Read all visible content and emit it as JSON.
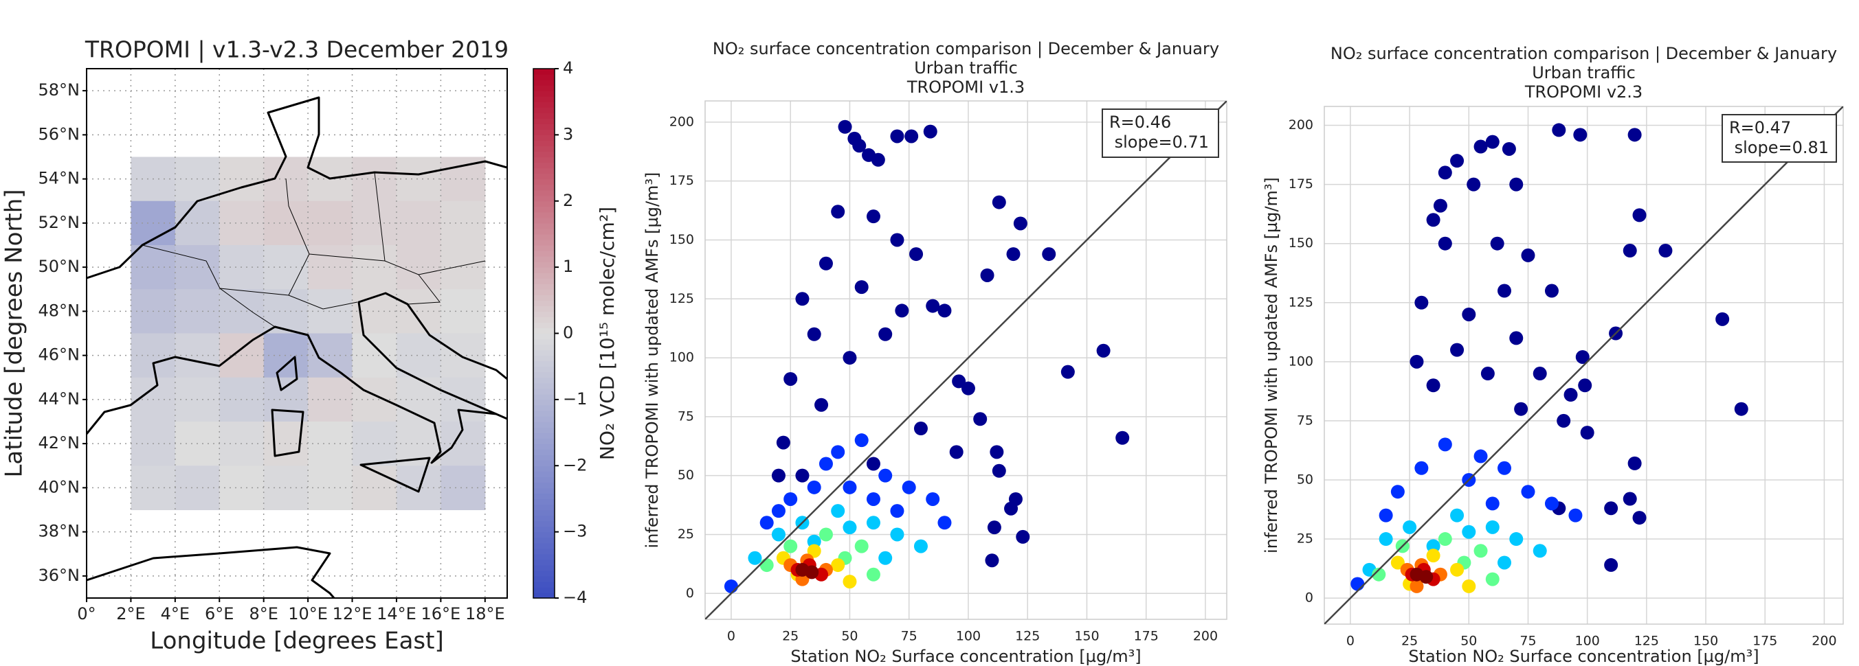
{
  "chart_data": [
    {
      "type": "heatmap",
      "title": "TROPOMI | v1.3-v2.3 December 2019",
      "xlabel": "Longitude [degrees East]",
      "ylabel": "Latitude [degrees North]",
      "xlim": [
        0,
        19
      ],
      "ylim": [
        35,
        59
      ],
      "xticks": [
        {
          "value": 0,
          "label": "0°"
        },
        {
          "value": 2,
          "label": "2°E"
        },
        {
          "value": 4,
          "label": "4°E"
        },
        {
          "value": 6,
          "label": "6°E"
        },
        {
          "value": 8,
          "label": "8°E"
        },
        {
          "value": 10,
          "label": "10°E"
        },
        {
          "value": 12,
          "label": "12°E"
        },
        {
          "value": 14,
          "label": "14°E"
        },
        {
          "value": 16,
          "label": "16°E"
        },
        {
          "value": 18,
          "label": "18°E"
        }
      ],
      "yticks": [
        {
          "value": 36,
          "label": "36°N"
        },
        {
          "value": 38,
          "label": "38°N"
        },
        {
          "value": 40,
          "label": "40°N"
        },
        {
          "value": 42,
          "label": "42°N"
        },
        {
          "value": 44,
          "label": "44°N"
        },
        {
          "value": 46,
          "label": "46°N"
        },
        {
          "value": 48,
          "label": "48°N"
        },
        {
          "value": 50,
          "label": "50°N"
        },
        {
          "value": 52,
          "label": "52°N"
        },
        {
          "value": 54,
          "label": "54°N"
        },
        {
          "value": 56,
          "label": "56°N"
        },
        {
          "value": 58,
          "label": "58°N"
        }
      ],
      "grid": true,
      "x_edges": [
        2,
        4,
        6,
        8,
        10,
        12,
        14,
        16,
        18
      ],
      "y_edges": [
        55,
        53,
        51,
        49,
        47,
        45,
        43,
        41,
        39
      ],
      "z": [
        [
          -0.3,
          -0.2,
          0.1,
          0.2,
          0.1,
          0.2,
          0.1,
          0.2
        ],
        [
          -1.5,
          -0.5,
          0.2,
          0.3,
          0.3,
          0.2,
          0.2,
          0.1
        ],
        [
          -1.0,
          -0.8,
          -0.3,
          -0.2,
          0.2,
          0.1,
          0.2,
          0.1
        ],
        [
          -0.8,
          -0.6,
          -0.5,
          -0.4,
          -0.2,
          0.1,
          0.1,
          0.0
        ],
        [
          -0.5,
          -0.3,
          0.3,
          -1.2,
          -0.8,
          0.0,
          -0.2,
          -0.1
        ],
        [
          -0.3,
          -0.2,
          -0.4,
          -0.5,
          0.2,
          0.1,
          -0.1,
          -0.2
        ],
        [
          -0.3,
          0.0,
          -0.1,
          0.1,
          0.0,
          -0.2,
          -0.1,
          -0.3
        ],
        [
          -0.2,
          -0.3,
          0.0,
          -0.1,
          0.0,
          0.1,
          -0.3,
          -0.6
        ]
      ],
      "colorbar": {
        "label": "NO₂ VCD [10¹⁵ molec/cm²]",
        "clim": [
          -4,
          4
        ],
        "colormap": [
          "#3b4cc0",
          "#dddddd",
          "#b40426"
        ],
        "ticks": [
          {
            "value": -4,
            "label": "−4"
          },
          {
            "value": -3,
            "label": "−3"
          },
          {
            "value": -2,
            "label": "−2"
          },
          {
            "value": -1,
            "label": "−1"
          },
          0,
          1,
          2,
          3,
          4
        ]
      }
    },
    {
      "type": "scatter",
      "title": [
        "NO₂ surface concentration comparison | December & January",
        "Urban traffic",
        "TROPOMI v1.3"
      ],
      "xlabel": "Station NO₂ Surface concentration [µg/m³]",
      "ylabel": "inferred TROPOMI with updated AMFs [µg/m³]",
      "xlim": [
        -11,
        209
      ],
      "ylim": [
        -11,
        209
      ],
      "xticks": [
        0,
        25,
        50,
        75,
        100,
        125,
        150,
        175,
        200
      ],
      "yticks": [
        0,
        25,
        50,
        75,
        100,
        125,
        150,
        175,
        200
      ],
      "grid": true,
      "annotation": [
        "R=0.46",
        " slope=0.71"
      ],
      "series": [
        {
          "color": "#00008f",
          "x": [
            48,
            52,
            54,
            58,
            62,
            70,
            76,
            84,
            113,
            122,
            134,
            119,
            108,
            157,
            142,
            165,
            123,
            120,
            118,
            111,
            110,
            112,
            113,
            100,
            96,
            85,
            78,
            70,
            60,
            45,
            40,
            30,
            25,
            22,
            35,
            55,
            65,
            72,
            90,
            50,
            38,
            80,
            95,
            105,
            60,
            30,
            20
          ],
          "values": [
            198,
            193,
            190,
            186,
            184,
            194,
            194,
            196,
            166,
            157,
            144,
            144,
            135,
            103,
            94,
            66,
            24,
            40,
            36,
            28,
            14,
            60,
            52,
            87,
            90,
            122,
            144,
            150,
            160,
            162,
            140,
            125,
            91,
            64,
            110,
            130,
            110,
            120,
            120,
            100,
            80,
            70,
            60,
            74,
            55,
            50,
            50
          ]
        },
        {
          "color": "#0030ff",
          "x": [
            25,
            35,
            45,
            55,
            65,
            75,
            85,
            15,
            40,
            60,
            50,
            20,
            90,
            70,
            0
          ],
          "values": [
            40,
            45,
            60,
            65,
            50,
            45,
            40,
            30,
            55,
            40,
            45,
            35,
            30,
            35,
            3
          ]
        },
        {
          "color": "#00c8ff",
          "x": [
            20,
            30,
            45,
            60,
            70,
            80,
            10,
            50,
            35,
            65
          ],
          "values": [
            25,
            30,
            35,
            30,
            25,
            20,
            15,
            28,
            22,
            15
          ]
        },
        {
          "color": "#60ff90",
          "x": [
            25,
            40,
            55,
            15,
            60,
            48
          ],
          "values": [
            20,
            25,
            20,
            12,
            8,
            15
          ]
        },
        {
          "color": "#ffe000",
          "x": [
            22,
            35,
            45,
            50,
            28
          ],
          "values": [
            15,
            18,
            12,
            5,
            8
          ]
        },
        {
          "color": "#ff7000",
          "x": [
            25,
            32,
            40,
            30
          ],
          "values": [
            12,
            14,
            10,
            6
          ]
        },
        {
          "color": "#d00000",
          "x": [
            28,
            33,
            38
          ],
          "values": [
            10,
            12,
            8
          ]
        },
        {
          "color": "#800000",
          "x": [
            30,
            34
          ],
          "values": [
            10,
            9
          ]
        }
      ]
    },
    {
      "type": "scatter",
      "title": [
        "NO₂ surface concentration comparison | December & January",
        "Urban traffic",
        "TROPOMI v2.3"
      ],
      "xlabel": "Station NO₂ Surface concentration [µg/m³]",
      "ylabel": "inferred TROPOMI with updated AMFs [µg/m³]",
      "xlim": [
        -11,
        208
      ],
      "ylim": [
        -11,
        208
      ],
      "xticks": [
        0,
        25,
        50,
        75,
        100,
        125,
        150,
        175,
        200
      ],
      "yticks": [
        0,
        25,
        50,
        75,
        100,
        125,
        150,
        175,
        200
      ],
      "grid": true,
      "annotation": [
        "R=0.47",
        " slope=0.81"
      ],
      "series": [
        {
          "color": "#00008f",
          "x": [
            88,
            97,
            120,
            122,
            133,
            118,
            157,
            165,
            112,
            98,
            99,
            93,
            120,
            118,
            122,
            110,
            110,
            100,
            88,
            60,
            55,
            45,
            40,
            38,
            67,
            70,
            52,
            35,
            30,
            28,
            40,
            62,
            75,
            85,
            65,
            50,
            35,
            45,
            70,
            80,
            58,
            90,
            72
          ],
          "values": [
            198,
            196,
            196,
            162,
            147,
            147,
            118,
            80,
            112,
            102,
            90,
            86,
            57,
            42,
            34,
            38,
            14,
            70,
            38,
            193,
            191,
            185,
            180,
            166,
            190,
            175,
            175,
            160,
            125,
            100,
            150,
            150,
            145,
            130,
            130,
            120,
            90,
            105,
            110,
            95,
            95,
            75,
            80
          ]
        },
        {
          "color": "#0030ff",
          "x": [
            20,
            30,
            40,
            55,
            65,
            75,
            85,
            15,
            50,
            95,
            3,
            60
          ],
          "values": [
            45,
            55,
            65,
            60,
            55,
            45,
            40,
            35,
            50,
            35,
            6,
            40
          ]
        },
        {
          "color": "#00c8ff",
          "x": [
            15,
            25,
            45,
            60,
            70,
            80,
            8,
            50,
            35,
            65
          ],
          "values": [
            25,
            30,
            35,
            30,
            25,
            20,
            12,
            28,
            22,
            15
          ]
        },
        {
          "color": "#60ff90",
          "x": [
            22,
            40,
            55,
            12,
            60,
            48
          ],
          "values": [
            22,
            25,
            20,
            10,
            8,
            15
          ]
        },
        {
          "color": "#ffe000",
          "x": [
            20,
            35,
            45,
            50,
            25
          ],
          "values": [
            15,
            18,
            12,
            5,
            6
          ]
        },
        {
          "color": "#ff7000",
          "x": [
            24,
            30,
            38,
            28
          ],
          "values": [
            12,
            14,
            10,
            5
          ]
        },
        {
          "color": "#d00000",
          "x": [
            26,
            31,
            35
          ],
          "values": [
            10,
            12,
            8
          ]
        },
        {
          "color": "#800000",
          "x": [
            28,
            32
          ],
          "values": [
            10,
            9
          ]
        }
      ]
    }
  ]
}
